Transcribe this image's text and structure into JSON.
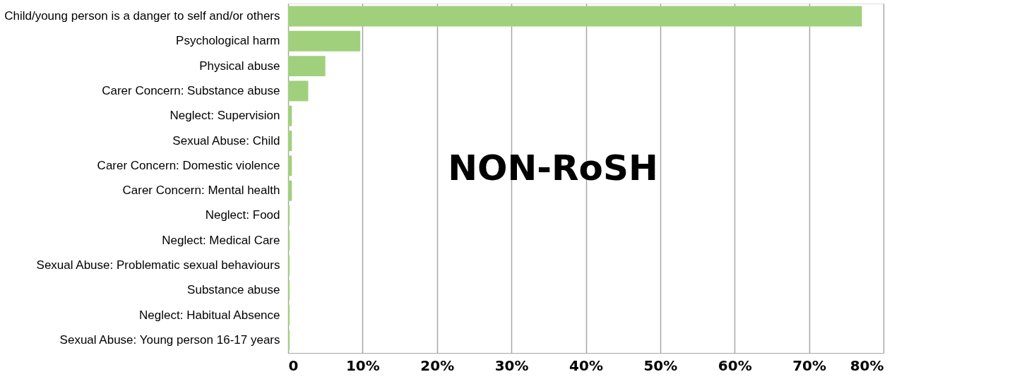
{
  "chart_data": {
    "type": "bar",
    "orientation": "horizontal",
    "categories": [
      "Child/young person is a danger to self and/or others",
      "Psychological harm",
      "Physical abuse",
      "Carer Concern: Substance abuse",
      "Neglect: Supervision",
      "Sexual Abuse: Child",
      "Carer Concern: Domestic violence",
      "Carer Concern: Mental health",
      "Neglect: Food",
      "Neglect: Medical Care",
      "Sexual Abuse: Problematic sexual behaviours",
      "Substance abuse",
      "Neglect: Habitual Absence",
      "Sexual Abuse: Young person 16-17 years"
    ],
    "values": [
      77.1,
      9.7,
      5.0,
      2.7,
      0.5,
      0.5,
      0.5,
      0.5,
      0.2,
      0.2,
      0.2,
      0.2,
      0.2,
      0.2
    ],
    "color": "#a0d07c",
    "xlim": [
      0,
      80
    ],
    "xticks": [
      {
        "value": 0,
        "label": "0"
      },
      {
        "value": 10,
        "label": "10%"
      },
      {
        "value": 20,
        "label": "20%"
      },
      {
        "value": 30,
        "label": "30%"
      },
      {
        "value": 40,
        "label": "40%"
      },
      {
        "value": 50,
        "label": "50%"
      },
      {
        "value": 60,
        "label": "60%"
      },
      {
        "value": 70,
        "label": "70%"
      },
      {
        "value": 80,
        "label": "80%"
      }
    ],
    "grid": "x",
    "annotations": [
      "NON-RoSH"
    ]
  }
}
